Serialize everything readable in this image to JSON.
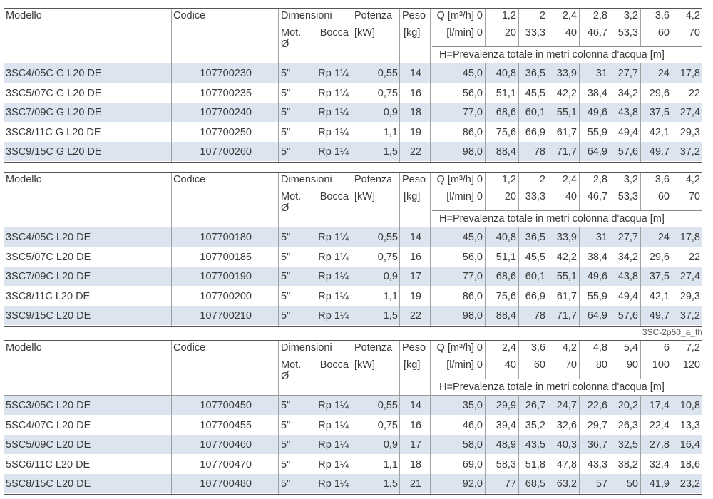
{
  "caption": "3SC-2p50_a_th",
  "tables": [
    {
      "headers": {
        "modello": "Modello",
        "codice": "Codice",
        "dimensioni": "Dimensioni",
        "mot": "Mot.",
        "diam": "Ø",
        "bocca": "Bocca",
        "potenza": "Potenza",
        "potenza_unit": "[kW]",
        "peso": "Peso",
        "peso_unit": "[kg]",
        "q_m3h": "Q [m³/h] 0",
        "q_lmin": "[l/min] 0",
        "h_label": "H=Prevalenza totale in metri colonna d'acqua [m]"
      },
      "q_m3h": [
        "1,2",
        "2",
        "2,4",
        "2,8",
        "3,2",
        "3,6",
        "4,2"
      ],
      "q_lmin": [
        "20",
        "33,3",
        "40",
        "46,7",
        "53,3",
        "60",
        "70"
      ],
      "rows": [
        {
          "modello": "3SC4/05C G L20 DE",
          "codice": "107700230",
          "mot": "5\"",
          "bocca": "Rp 1¼",
          "potenza": "0,55",
          "peso": "14",
          "h": [
            "45,0",
            "40,8",
            "36,5",
            "33,9",
            "31",
            "27,7",
            "24",
            "17,8"
          ]
        },
        {
          "modello": "3SC5/07C G L20 DE",
          "codice": "107700235",
          "mot": "5\"",
          "bocca": "Rp 1¼",
          "potenza": "0,75",
          "peso": "16",
          "h": [
            "56,0",
            "51,1",
            "45,5",
            "42,2",
            "38,4",
            "34,2",
            "29,6",
            "22"
          ]
        },
        {
          "modello": "3SC7/09C G L20 DE",
          "codice": "107700240",
          "mot": "5\"",
          "bocca": "Rp 1¼",
          "potenza": "0,9",
          "peso": "18",
          "h": [
            "77,0",
            "68,6",
            "60,1",
            "55,1",
            "49,6",
            "43,8",
            "37,5",
            "27,4"
          ]
        },
        {
          "modello": "3SC8/11C G L20 DE",
          "codice": "107700250",
          "mot": "5\"",
          "bocca": "Rp 1¼",
          "potenza": "1,1",
          "peso": "19",
          "h": [
            "86,0",
            "75,6",
            "66,9",
            "61,7",
            "55,9",
            "49,4",
            "42,1",
            "29,3"
          ]
        },
        {
          "modello": "3SC9/15C G L20 DE",
          "codice": "107700260",
          "mot": "5\"",
          "bocca": "Rp 1¼",
          "potenza": "1,5",
          "peso": "22",
          "h": [
            "98,0",
            "88,4",
            "78",
            "71,7",
            "64,9",
            "57,6",
            "49,7",
            "37,2"
          ]
        }
      ]
    },
    {
      "headers": {
        "modello": "Modello",
        "codice": "Codice",
        "dimensioni": "Dimensioni",
        "mot": "Mot.",
        "diam": "Ø",
        "bocca": "Bocca",
        "potenza": "Potenza",
        "potenza_unit": "[kW]",
        "peso": "Peso",
        "peso_unit": "[kg]",
        "q_m3h": "Q [m³/h] 0",
        "q_lmin": "[l/min] 0",
        "h_label": "H=Prevalenza totale in metri colonna d'acqua [m]"
      },
      "q_m3h": [
        "1,2",
        "2",
        "2,4",
        "2,8",
        "3,2",
        "3,6",
        "4,2"
      ],
      "q_lmin": [
        "20",
        "33,3",
        "40",
        "46,7",
        "53,3",
        "60",
        "70"
      ],
      "rows": [
        {
          "modello": "3SC4/05C L20 DE",
          "codice": "107700180",
          "mot": "5\"",
          "bocca": "Rp 1¼",
          "potenza": "0,55",
          "peso": "14",
          "h": [
            "45,0",
            "40,8",
            "36,5",
            "33,9",
            "31",
            "27,7",
            "24",
            "17,8"
          ]
        },
        {
          "modello": "3SC5/07C L20 DE",
          "codice": "107700185",
          "mot": "5\"",
          "bocca": "Rp 1¼",
          "potenza": "0,75",
          "peso": "16",
          "h": [
            "56,0",
            "51,1",
            "45,5",
            "42,2",
            "38,4",
            "34,2",
            "29,6",
            "22"
          ]
        },
        {
          "modello": "3SC7/09C L20 DE",
          "codice": "107700190",
          "mot": "5\"",
          "bocca": "Rp 1¼",
          "potenza": "0,9",
          "peso": "17",
          "h": [
            "77,0",
            "68,6",
            "60,1",
            "55,1",
            "49,6",
            "43,8",
            "37,5",
            "27,4"
          ]
        },
        {
          "modello": "3SC8/11C L20 DE",
          "codice": "107700200",
          "mot": "5\"",
          "bocca": "Rp 1¼",
          "potenza": "1,1",
          "peso": "19",
          "h": [
            "86,0",
            "75,6",
            "66,9",
            "61,7",
            "55,9",
            "49,4",
            "42,1",
            "29,3"
          ]
        },
        {
          "modello": "3SC9/15C L20 DE",
          "codice": "107700210",
          "mot": "5\"",
          "bocca": "Rp 1¼",
          "potenza": "1,5",
          "peso": "22",
          "h": [
            "98,0",
            "88,4",
            "78",
            "71,7",
            "64,9",
            "57,6",
            "49,7",
            "37,2"
          ]
        }
      ]
    },
    {
      "headers": {
        "modello": "Modello",
        "codice": "Codice",
        "dimensioni": "Dimensioni",
        "mot": "Mot.",
        "diam": "Ø",
        "bocca": "Bocca",
        "potenza": "Potenza",
        "potenza_unit": "[kW]",
        "peso": "Peso",
        "peso_unit": "[kg]",
        "q_m3h": "Q [m³/h] 0",
        "q_lmin": "[l/min] 0",
        "h_label": "H=Prevalenza totale in metri colonna d'acqua [m]"
      },
      "q_m3h": [
        "2,4",
        "3,6",
        "4,2",
        "4,8",
        "5,4",
        "6",
        "7,2"
      ],
      "q_lmin": [
        "40",
        "60",
        "70",
        "80",
        "90",
        "100",
        "120"
      ],
      "rows": [
        {
          "modello": "5SC3/05C L20 DE",
          "codice": "107700450",
          "mot": "5\"",
          "bocca": "Rp 1¼",
          "potenza": "0,55",
          "peso": "14",
          "h": [
            "35,0",
            "29,9",
            "26,7",
            "24,7",
            "22,6",
            "20,2",
            "17,4",
            "10,8"
          ]
        },
        {
          "modello": "5SC4/07C L20 DE",
          "codice": "107700455",
          "mot": "5\"",
          "bocca": "Rp 1¼",
          "potenza": "0,75",
          "peso": "16",
          "h": [
            "46,0",
            "39,4",
            "35,2",
            "32,6",
            "29,7",
            "26,3",
            "22,4",
            "13,3"
          ]
        },
        {
          "modello": "5SC5/09C L20 DE",
          "codice": "107700460",
          "mot": "5\"",
          "bocca": "Rp 1¼",
          "potenza": "0,9",
          "peso": "17",
          "h": [
            "58,0",
            "48,9",
            "43,5",
            "40,3",
            "36,7",
            "32,5",
            "27,8",
            "16,4"
          ]
        },
        {
          "modello": "5SC6/11C L20 DE",
          "codice": "107700470",
          "mot": "5\"",
          "bocca": "Rp 1¼",
          "potenza": "1,1",
          "peso": "18",
          "h": [
            "69,0",
            "58,3",
            "51,8",
            "47,8",
            "43,3",
            "38,2",
            "32,4",
            "18,6"
          ]
        },
        {
          "modello": "5SC8/15C L20 DE",
          "codice": "107700480",
          "mot": "5\"",
          "bocca": "Rp 1¼",
          "potenza": "1,5",
          "peso": "21",
          "h": [
            "92,0",
            "77",
            "68,5",
            "63,2",
            "57",
            "50",
            "41,9",
            "23,2"
          ]
        }
      ]
    }
  ]
}
